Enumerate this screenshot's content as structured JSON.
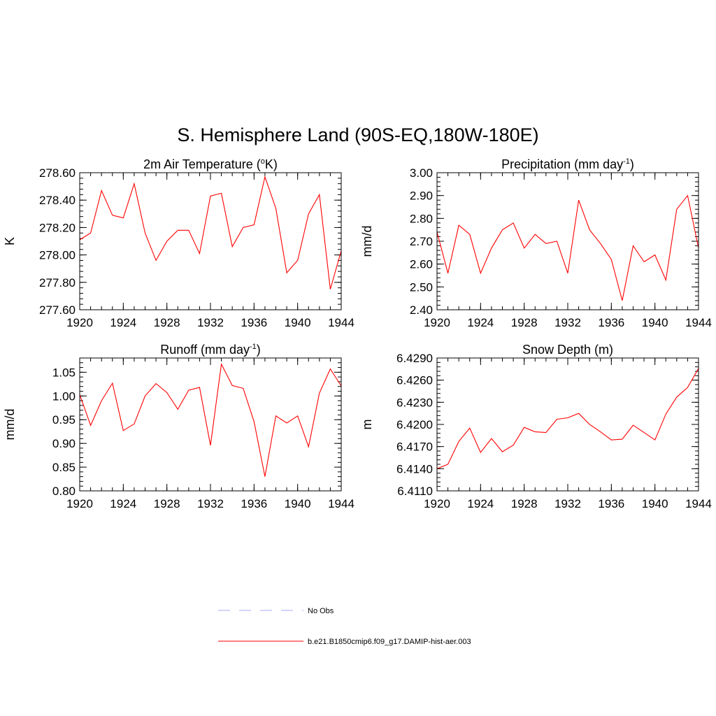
{
  "figure": {
    "title": "S. Hemisphere Land (90S-EQ,180W-180E)"
  },
  "chart_data": [
    {
      "type": "line",
      "title": "2m Air Temperature (",
      "title_sup": "o",
      "title_after": "K)",
      "xlabel": "",
      "ylabel": "K",
      "xlim": [
        1920,
        1944
      ],
      "ylim": [
        277.6,
        278.6
      ],
      "x_ticks": [
        1920,
        1924,
        1928,
        1932,
        1936,
        1940,
        1944
      ],
      "x_tick_labels": [
        "1920",
        "1924",
        "1928",
        "1932",
        "1936",
        "1940",
        "1944"
      ],
      "y_ticks": [
        277.6,
        277.8,
        278.0,
        278.2,
        278.4,
        278.6
      ],
      "y_tick_labels": [
        "277.60",
        "277.80",
        "278.00",
        "278.20",
        "278.40",
        "278.60"
      ],
      "y_minor_step": 0.04,
      "series": [
        {
          "color": "#ff0000",
          "x": [
            1920,
            1921,
            1922,
            1923,
            1924,
            1925,
            1926,
            1927,
            1928,
            1929,
            1930,
            1931,
            1932,
            1933,
            1934,
            1935,
            1936,
            1937,
            1938,
            1939,
            1940,
            1941,
            1942,
            1943,
            1944
          ],
          "values": [
            278.11,
            278.16,
            278.47,
            278.29,
            278.27,
            278.52,
            278.16,
            277.96,
            278.1,
            278.18,
            278.18,
            278.01,
            278.43,
            278.45,
            278.06,
            278.2,
            278.22,
            278.57,
            278.34,
            277.87,
            277.96,
            278.3,
            278.44,
            277.75,
            278.03
          ]
        }
      ]
    },
    {
      "type": "line",
      "title": "Precipitation (mm day",
      "title_sup": "-1",
      "title_after": ")",
      "xlabel": "",
      "ylabel": "mm/d",
      "xlim": [
        1920,
        1944
      ],
      "ylim": [
        2.4,
        3.0
      ],
      "x_ticks": [
        1920,
        1924,
        1928,
        1932,
        1936,
        1940,
        1944
      ],
      "x_tick_labels": [
        "1920",
        "1924",
        "1928",
        "1932",
        "1936",
        "1940",
        "1944"
      ],
      "y_ticks": [
        2.4,
        2.5,
        2.6,
        2.7,
        2.8,
        2.9,
        3.0
      ],
      "y_tick_labels": [
        "2.40",
        "2.50",
        "2.60",
        "2.70",
        "2.80",
        "2.90",
        "3.00"
      ],
      "y_minor_step": 0.02,
      "series": [
        {
          "color": "#ff0000",
          "x": [
            1920,
            1921,
            1922,
            1923,
            1924,
            1925,
            1926,
            1927,
            1928,
            1929,
            1930,
            1931,
            1932,
            1933,
            1934,
            1935,
            1936,
            1937,
            1938,
            1939,
            1940,
            1941,
            1942,
            1943,
            1944
          ],
          "values": [
            2.74,
            2.56,
            2.77,
            2.73,
            2.56,
            2.67,
            2.75,
            2.78,
            2.67,
            2.73,
            2.69,
            2.7,
            2.56,
            2.88,
            2.75,
            2.69,
            2.62,
            2.44,
            2.68,
            2.61,
            2.64,
            2.53,
            2.84,
            2.9,
            2.67
          ]
        }
      ]
    },
    {
      "type": "line",
      "title": "Runoff (mm day",
      "title_sup": "-1",
      "title_after": ")",
      "xlabel": "",
      "ylabel": "mm/d",
      "xlim": [
        1920,
        1944
      ],
      "ylim": [
        0.8,
        1.08
      ],
      "x_ticks": [
        1920,
        1924,
        1928,
        1932,
        1936,
        1940,
        1944
      ],
      "x_tick_labels": [
        "1920",
        "1924",
        "1928",
        "1932",
        "1936",
        "1940",
        "1944"
      ],
      "y_ticks": [
        0.8,
        0.85,
        0.9,
        0.95,
        1.0,
        1.05
      ],
      "y_tick_labels": [
        "0.80",
        "0.85",
        "0.90",
        "0.95",
        "1.00",
        "1.05"
      ],
      "y_minor_step": 0.01,
      "series": [
        {
          "color": "#ff0000",
          "x": [
            1920,
            1921,
            1922,
            1923,
            1924,
            1925,
            1926,
            1927,
            1928,
            1929,
            1930,
            1931,
            1932,
            1933,
            1934,
            1935,
            1936,
            1937,
            1938,
            1939,
            1940,
            1941,
            1942,
            1943,
            1944
          ],
          "values": [
            1.003,
            0.938,
            0.99,
            1.027,
            0.927,
            0.941,
            1.0,
            1.026,
            1.007,
            0.972,
            1.012,
            1.018,
            0.896,
            1.067,
            1.022,
            1.016,
            0.946,
            0.83,
            0.958,
            0.943,
            0.958,
            0.893,
            1.006,
            1.057,
            1.021
          ]
        }
      ]
    },
    {
      "type": "line",
      "title": "Snow Depth (m)",
      "title_sup": "",
      "title_after": "",
      "xlabel": "",
      "ylabel": "m",
      "xlim": [
        1920,
        1944
      ],
      "ylim": [
        6.411,
        6.429
      ],
      "x_ticks": [
        1920,
        1924,
        1928,
        1932,
        1936,
        1940,
        1944
      ],
      "x_tick_labels": [
        "1920",
        "1924",
        "1928",
        "1932",
        "1936",
        "1940",
        "1944"
      ],
      "y_ticks": [
        6.411,
        6.414,
        6.417,
        6.42,
        6.423,
        6.426,
        6.429
      ],
      "y_tick_labels": [
        "6.4110",
        "6.4140",
        "6.4170",
        "6.4200",
        "6.4230",
        "6.4260",
        "6.4290"
      ],
      "y_minor_step": 0.0006,
      "series": [
        {
          "color": "#ff0000",
          "x": [
            1920,
            1921,
            1922,
            1923,
            1924,
            1925,
            1926,
            1927,
            1928,
            1929,
            1930,
            1931,
            1932,
            1933,
            1934,
            1935,
            1936,
            1937,
            1938,
            1939,
            1940,
            1941,
            1942,
            1943,
            1944
          ],
          "values": [
            6.414,
            6.4146,
            6.4177,
            6.4195,
            6.4162,
            6.4181,
            6.4163,
            6.4172,
            6.4196,
            6.419,
            6.4189,
            6.4207,
            6.4209,
            6.4215,
            6.42,
            6.419,
            6.4179,
            6.418,
            6.4199,
            6.4189,
            6.4179,
            6.4214,
            6.4237,
            6.425,
            6.4276
          ]
        }
      ]
    }
  ],
  "legend": [
    {
      "label": "No Obs",
      "color": "#aaaaff",
      "style": "dashed"
    },
    {
      "label": "b.e21.B1850cmip6.f09_g17.DAMIP-hist-aer.003",
      "color": "#ff0000",
      "style": "solid"
    }
  ]
}
